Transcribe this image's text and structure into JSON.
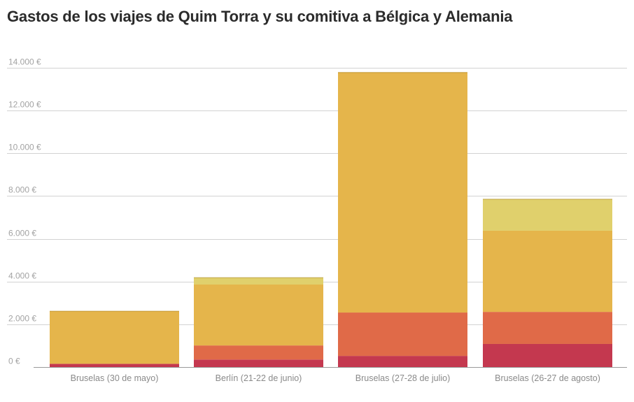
{
  "chart_data": {
    "type": "bar",
    "stacked": true,
    "title": "Gastos de los viajes de Quim Torra y su comitiva a Bélgica y Alemania",
    "xlabel": "",
    "ylabel": "",
    "ylim": [
      0,
      14000
    ],
    "yticks": [
      0,
      2000,
      4000,
      6000,
      8000,
      10000,
      12000,
      14000
    ],
    "ytick_labels": [
      "0 €",
      "2.000 €",
      "4.000 €",
      "6.000 €",
      "8.000 €",
      "10.000 €",
      "12.000 €",
      "14.000 €"
    ],
    "grid": true,
    "legend": "none",
    "categories": [
      "Bruselas (30 de mayo)",
      "Berlín (21-22 de junio)",
      "Bruselas (27-28 de julio)",
      "Bruselas (26-27 de agosto)"
    ],
    "series": [
      {
        "color": "#c4384f",
        "values": [
          150,
          350,
          520,
          1080
        ]
      },
      {
        "color": "#e06a48",
        "values": [
          0,
          660,
          2030,
          1500
        ]
      },
      {
        "color": "#e5b54b",
        "values": [
          2470,
          2850,
          11240,
          3800
        ]
      },
      {
        "color": "#e0d06c",
        "values": [
          0,
          330,
          0,
          1480
        ]
      }
    ]
  }
}
